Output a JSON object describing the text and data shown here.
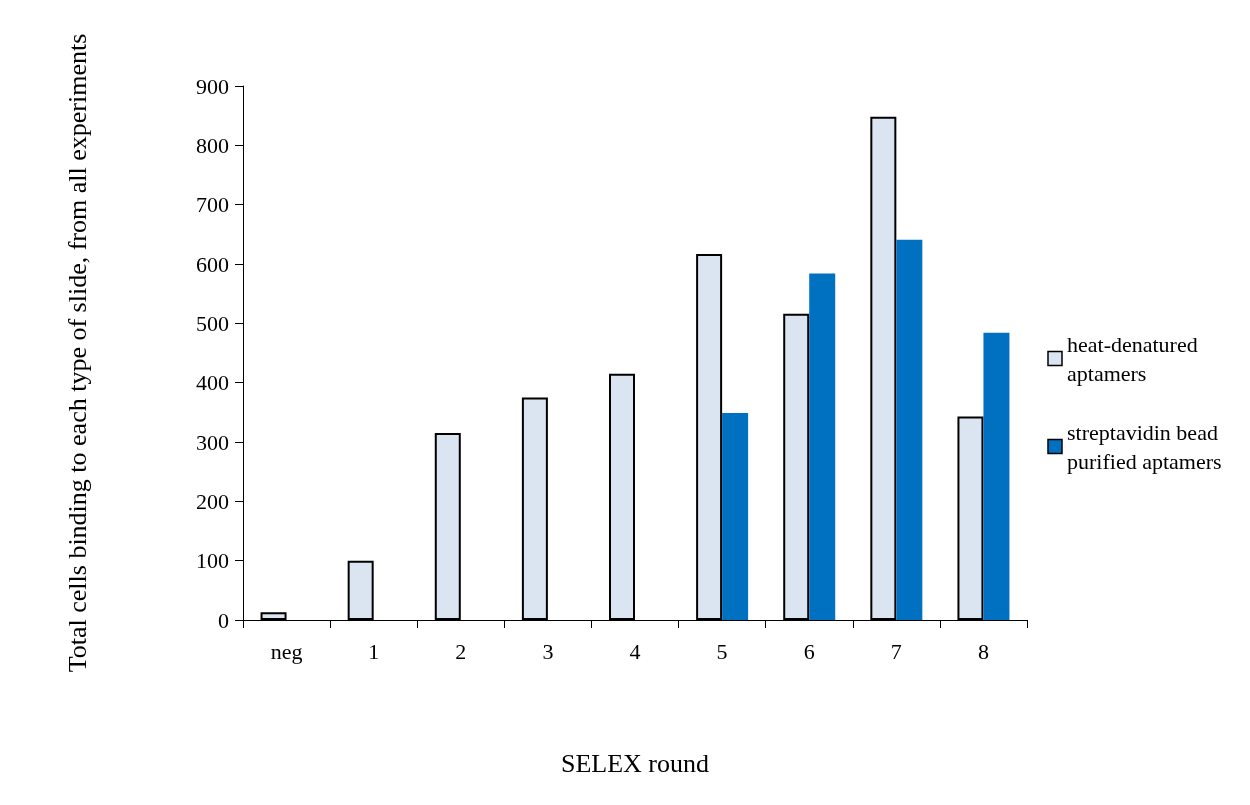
{
  "chart_data": {
    "type": "bar",
    "xlabel": "SELEX round",
    "ylabel": "Total cells binding to each type of slide, from all experiments",
    "categories": [
      "neg",
      "1",
      "2",
      "3",
      "4",
      "5",
      "6",
      "7",
      "8"
    ],
    "series": [
      {
        "name": "heat-denatured aptamers",
        "color": "#dbe5f1",
        "values": [
          13,
          100,
          315,
          375,
          415,
          617,
          516,
          848,
          343
        ]
      },
      {
        "name": "streptavidin bead purified aptamers",
        "color": "#0070c0",
        "values": [
          null,
          null,
          null,
          null,
          null,
          349,
          584,
          641,
          484
        ]
      }
    ],
    "ylim": [
      0,
      900
    ],
    "yticks": [
      0,
      100,
      200,
      300,
      400,
      500,
      600,
      700,
      800,
      900
    ],
    "grid": false,
    "legend": "right"
  }
}
